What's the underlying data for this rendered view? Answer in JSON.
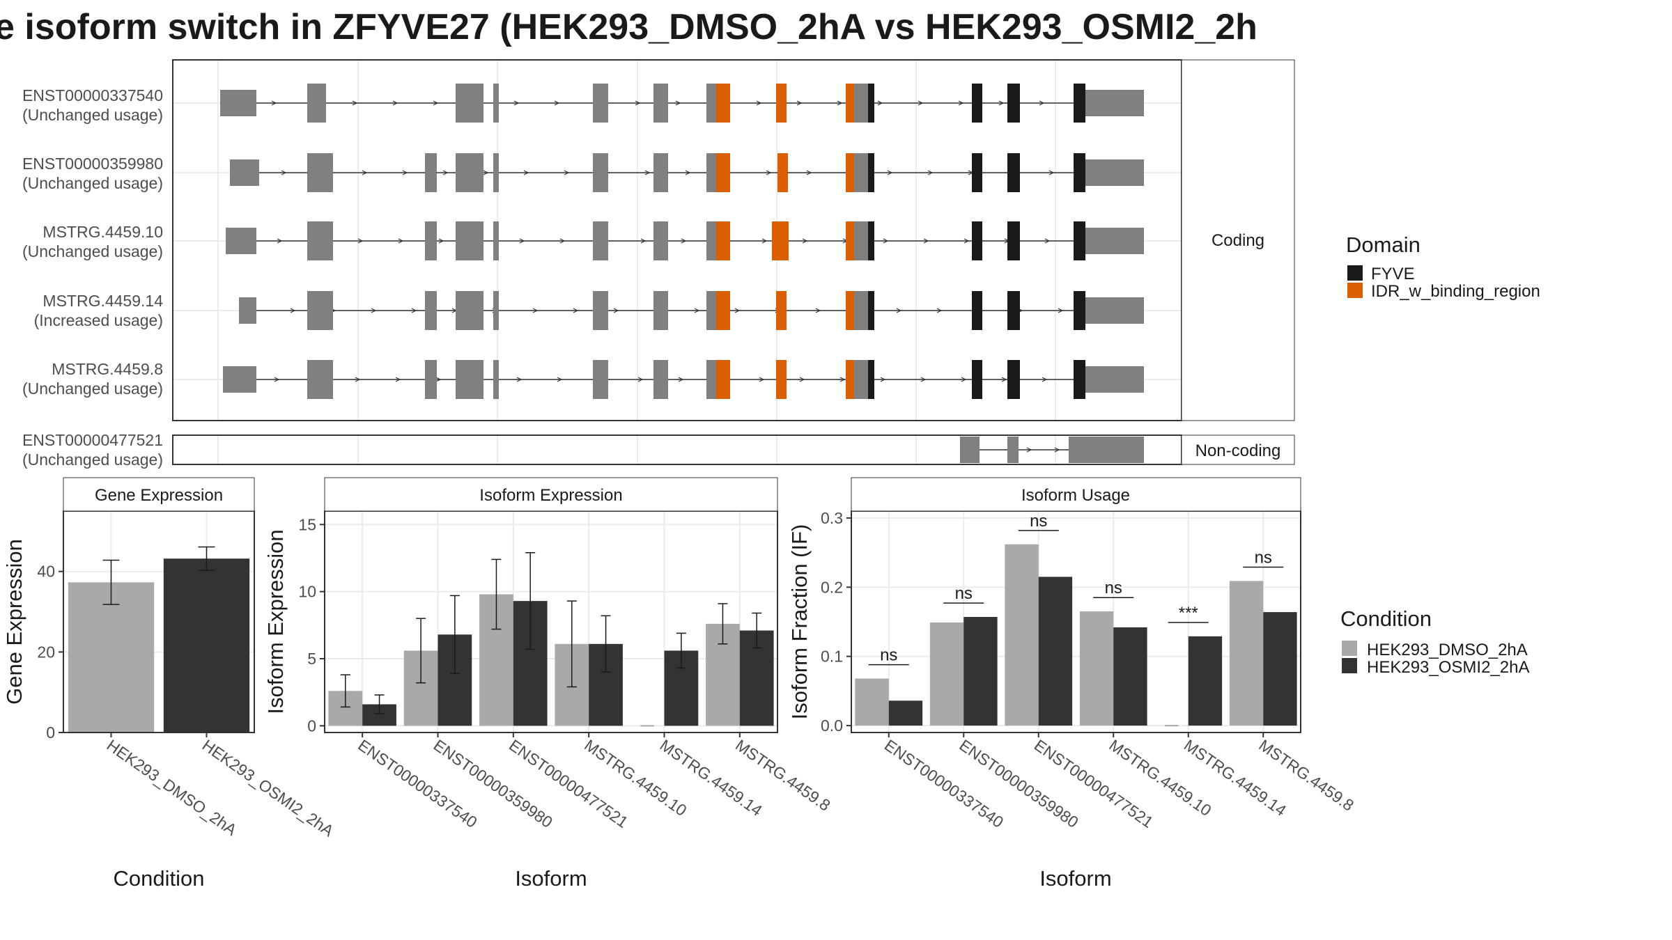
{
  "title": "e isoform switch in ZFYVE27 (HEK293_DMSO_2hA vs HEK293_OSMI2_2h",
  "colors": {
    "exon": "#808080",
    "fyve": "#1a1a1a",
    "idr": "#d95f02",
    "dmso": "#a9a9a9",
    "osmi2": "#333333",
    "grid": "#ebebeb",
    "panel_border": "#333333",
    "strip_fill": "#ffffff"
  },
  "structure": {
    "strips": {
      "coding": "Coding",
      "noncoding": "Non-coding"
    },
    "coding_isoforms": [
      {
        "name": "ENST00000337540",
        "status": "(Unchanged usage)"
      },
      {
        "name": "ENST00000359980",
        "status": "(Unchanged usage)"
      },
      {
        "name": "MSTRG.4459.10",
        "status": "(Unchanged usage)"
      },
      {
        "name": "MSTRG.4459.14",
        "status": "(Increased usage)"
      },
      {
        "name": "MSTRG.4459.8",
        "status": "(Unchanged usage)"
      }
    ],
    "noncoding_isoforms": [
      {
        "name": "ENST00000477521",
        "status": "(Unchanged usage)"
      }
    ]
  },
  "legend_domain": {
    "title": "Domain",
    "items": [
      {
        "label": "FYVE",
        "color": "#1a1a1a"
      },
      {
        "label": "IDR_w_binding_region",
        "color": "#d95f02"
      }
    ]
  },
  "legend_condition": {
    "title": "Condition",
    "items": [
      {
        "label": "HEK293_DMSO_2hA",
        "color": "#a9a9a9"
      },
      {
        "label": "HEK293_OSMI2_2hA",
        "color": "#333333"
      }
    ]
  },
  "chart_data": [
    {
      "type": "bar",
      "title": "Gene Expression",
      "xlabel": "Condition",
      "ylabel": "Gene Expression",
      "categories": [
        "HEK293_DMSO_2hA",
        "HEK293_OSMI2_2hA"
      ],
      "values": [
        37.3,
        43.2
      ],
      "errors": [
        5.5,
        2.9
      ],
      "ylim": [
        0,
        55
      ],
      "yticks": [
        0,
        20,
        40
      ],
      "grid": true
    },
    {
      "type": "bar",
      "title": "Isoform Expression",
      "xlabel": "Isoform",
      "ylabel": "Isoform Expression",
      "categories": [
        "ENST00000337540",
        "ENST00000359980",
        "ENST00000477521",
        "MSTRG.4459.10",
        "MSTRG.4459.14",
        "MSTRG.4459.8"
      ],
      "series": [
        {
          "name": "HEK293_DMSO_2hA",
          "values": [
            2.6,
            5.6,
            9.8,
            6.1,
            0.0,
            7.6
          ],
          "errors": [
            1.2,
            2.4,
            2.6,
            3.2,
            0.0,
            1.5
          ]
        },
        {
          "name": "HEK293_OSMI2_2hA",
          "values": [
            1.6,
            6.8,
            9.3,
            6.1,
            5.6,
            7.1
          ],
          "errors": [
            0.7,
            2.9,
            3.6,
            2.1,
            1.3,
            1.3
          ]
        }
      ],
      "ylim": [
        -0.5,
        16
      ],
      "yticks": [
        0,
        5,
        10,
        15
      ],
      "grid": true
    },
    {
      "type": "bar",
      "title": "Isoform Usage",
      "xlabel": "Isoform",
      "ylabel": "Isoform Fraction (IF)",
      "categories": [
        "ENST00000337540",
        "ENST00000359980",
        "ENST00000477521",
        "MSTRG.4459.10",
        "MSTRG.4459.14",
        "MSTRG.4459.8"
      ],
      "series": [
        {
          "name": "HEK293_DMSO_2hA",
          "values": [
            0.068,
            0.149,
            0.262,
            0.165,
            0.0,
            0.209
          ]
        },
        {
          "name": "HEK293_OSMI2_2hA",
          "values": [
            0.036,
            0.157,
            0.215,
            0.142,
            0.129,
            0.164
          ]
        }
      ],
      "significance": [
        "ns",
        "ns",
        "ns",
        "ns",
        "***",
        "ns"
      ],
      "ylim": [
        -0.01,
        0.31
      ],
      "yticks": [
        "0.0",
        "0.1",
        "0.2",
        "0.3"
      ],
      "grid": true
    }
  ]
}
